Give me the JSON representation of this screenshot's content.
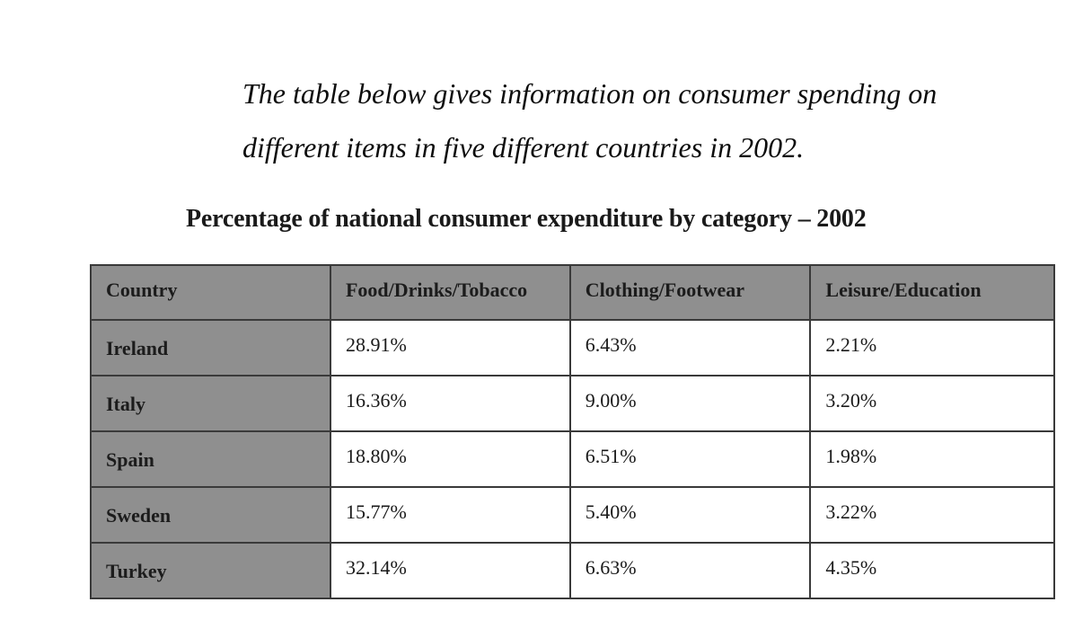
{
  "intro": {
    "line1": "The table below gives information on consumer spending on",
    "line2": "different items in five different countries in 2002."
  },
  "chart_data": {
    "type": "table",
    "title": "Percentage of national consumer expenditure by category – 2002",
    "columns": [
      "Country",
      "Food/Drinks/Tobacco",
      "Clothing/Footwear",
      "Leisure/Education"
    ],
    "rows": [
      {
        "country": "Ireland",
        "values": [
          "28.91%",
          "6.43%",
          "2.21%"
        ]
      },
      {
        "country": "Italy",
        "values": [
          "16.36%",
          "9.00%",
          "3.20%"
        ]
      },
      {
        "country": "Spain",
        "values": [
          "18.80%",
          "6.51%",
          "1.98%"
        ]
      },
      {
        "country": "Sweden",
        "values": [
          "15.77%",
          "5.40%",
          "3.22%"
        ]
      },
      {
        "country": "Turkey",
        "values": [
          "32.14%",
          "6.63%",
          "4.35%"
        ]
      }
    ],
    "series": [
      {
        "name": "Food/Drinks/Tobacco",
        "values": [
          28.91,
          16.36,
          18.8,
          15.77,
          32.14
        ]
      },
      {
        "name": "Clothing/Footwear",
        "values": [
          6.43,
          9.0,
          6.51,
          5.4,
          6.63
        ]
      },
      {
        "name": "Leisure/Education",
        "values": [
          2.21,
          3.2,
          1.98,
          3.22,
          4.35
        ]
      }
    ],
    "categories": [
      "Ireland",
      "Italy",
      "Spain",
      "Sweden",
      "Turkey"
    ]
  },
  "colors": {
    "header_fill": "#8f8f8f",
    "border": "#3a3a3a",
    "cell_fill": "#ffffff"
  }
}
